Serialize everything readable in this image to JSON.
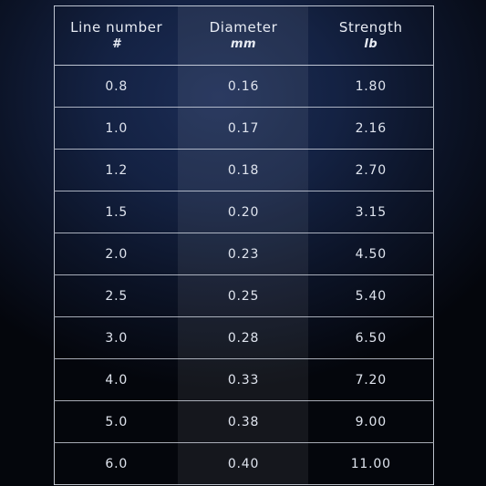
{
  "table": {
    "headers": [
      {
        "label": "Line number",
        "unit": "#"
      },
      {
        "label": "Diameter",
        "unit": "mm"
      },
      {
        "label": "Strength",
        "unit": "lb"
      }
    ],
    "rows": [
      [
        "0.8",
        "0.16",
        "1.80"
      ],
      [
        "1.0",
        "0.17",
        "2.16"
      ],
      [
        "1.2",
        "0.18",
        "2.70"
      ],
      [
        "1.5",
        "0.20",
        "3.15"
      ],
      [
        "2.0",
        "0.23",
        "4.50"
      ],
      [
        "2.5",
        "0.25",
        "5.40"
      ],
      [
        "3.0",
        "0.28",
        "6.50"
      ],
      [
        "4.0",
        "0.33",
        "7.20"
      ],
      [
        "5.0",
        "0.38",
        "9.00"
      ],
      [
        "6.0",
        "0.40",
        "11.00"
      ]
    ]
  }
}
